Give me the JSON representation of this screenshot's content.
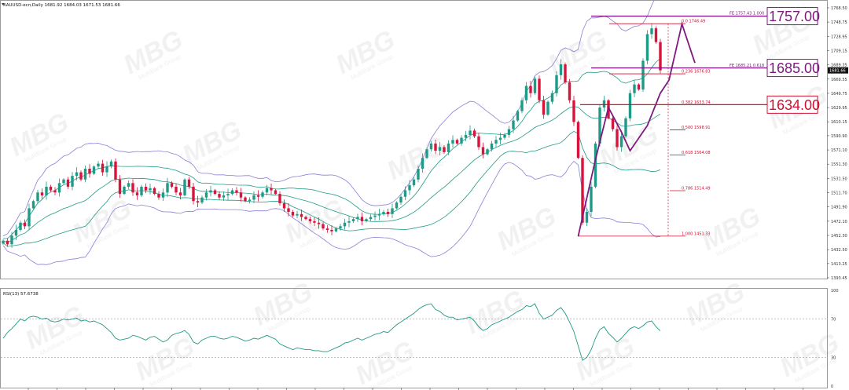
{
  "chart": {
    "symbol_line": "XAUUSD-ecn,Daily  1681.92 1684.03 1671.53 1681.66",
    "current_price_label": "1681.66",
    "watermark": {
      "text": "MBG",
      "subtext": "MultiBank Group"
    },
    "colors": {
      "bull": "#1f9a86",
      "bear": "#d6143c",
      "bb_outer": "#8a7fd6",
      "bb_inner": "#1f9a86",
      "fib": "#d01030",
      "fe": "#8b1a8b",
      "rsi": "#1f9a86",
      "impulse": "#7d1a7d"
    }
  },
  "chart_data": [
    {
      "type": "candlestick",
      "title": "",
      "ylim": [
        1393.45,
        1768.5
      ],
      "y_ticks": [
        "1768.50",
        "1748.75",
        "1728.95",
        "1709.15",
        "1689.35",
        "1669.55",
        "1649.75",
        "1629.95",
        "1610.15",
        "1590.90",
        "1571.10",
        "1551.30",
        "1531.50",
        "1511.70",
        "1491.90",
        "1472.10",
        "1452.30",
        "1432.50",
        "1413.25",
        "1393.45"
      ],
      "fibonacci": {
        "levels": [
          {
            "ratio": "0.0",
            "price": "1746.49",
            "text": "0.0  1746.49"
          },
          {
            "ratio": "0.236",
            "price": "1676.83",
            "text": "0.236  1676.83"
          },
          {
            "ratio": "0.382",
            "price": "1633.74",
            "text": "0.382  1633.74"
          },
          {
            "ratio": "0.500",
            "price": "1598.91",
            "text": "0.500  1598.91"
          },
          {
            "ratio": "0.618",
            "price": "1564.08",
            "text": "0.618  1564.08"
          },
          {
            "ratio": "0.786",
            "price": "1514.49",
            "text": "0.786  1514.49"
          },
          {
            "ratio": "1.000",
            "price": "1451.33",
            "text": "1.000  1451.33"
          }
        ]
      },
      "fib_expansion": [
        {
          "text": "FE 1757.43  1.000",
          "price": 1757.43
        },
        {
          "text": "FE 1685.21  0.618",
          "price": 1685.21
        }
      ],
      "key_levels": [
        {
          "label": "1757.00",
          "price": 1757.0,
          "color": "#7d1a7d"
        },
        {
          "label": "1685.00",
          "price": 1685.0,
          "color": "#7d1a7d"
        },
        {
          "label": "1634.00",
          "price": 1634.0,
          "color": "#d01030"
        }
      ],
      "impulse_path": [
        [
          133,
          1451
        ],
        [
          137,
          1558
        ],
        [
          140,
          1630
        ],
        [
          143,
          1596
        ],
        [
          145,
          1570
        ],
        [
          149,
          1605
        ],
        [
          152,
          1650
        ],
        [
          154,
          1668
        ],
        [
          157,
          1746
        ],
        [
          160,
          1692
        ]
      ],
      "closes": [
        1445,
        1440,
        1452,
        1460,
        1470,
        1465,
        1490,
        1500,
        1512,
        1508,
        1520,
        1515,
        1512,
        1525,
        1530,
        1520,
        1535,
        1540,
        1530,
        1545,
        1538,
        1548,
        1552,
        1540,
        1548,
        1555,
        1530,
        1510,
        1520,
        1525,
        1512,
        1508,
        1520,
        1515,
        1518,
        1510,
        1505,
        1512,
        1525,
        1520,
        1512,
        1508,
        1530,
        1520,
        1500,
        1498,
        1505,
        1512,
        1515,
        1510,
        1505,
        1508,
        1510,
        1515,
        1512,
        1505,
        1500,
        1502,
        1508,
        1506,
        1512,
        1518,
        1515,
        1510,
        1497,
        1490,
        1485,
        1480,
        1482,
        1478,
        1475,
        1472,
        1470,
        1468,
        1462,
        1460,
        1458,
        1462,
        1465,
        1470,
        1472,
        1475,
        1478,
        1472,
        1475,
        1478,
        1480,
        1482,
        1485,
        1482,
        1490,
        1498,
        1506,
        1515,
        1522,
        1530,
        1545,
        1560,
        1572,
        1580,
        1570,
        1575,
        1568,
        1580,
        1585,
        1580,
        1588,
        1592,
        1598,
        1590,
        1575,
        1565,
        1572,
        1580,
        1585,
        1588,
        1592,
        1600,
        1612,
        1625,
        1640,
        1660,
        1650,
        1670,
        1640,
        1620,
        1638,
        1650,
        1675,
        1690,
        1665,
        1640,
        1610,
        1560,
        1470,
        1485,
        1520,
        1580,
        1630,
        1640,
        1615,
        1600,
        1575,
        1590,
        1615,
        1650,
        1662,
        1655,
        1695,
        1732,
        1740,
        1721,
        1681.66
      ],
      "rsi": {
        "label": "RSI(13) 57.6738",
        "ylim": [
          0,
          100
        ],
        "levels": [
          70,
          30
        ],
        "tick_labels": [
          "100",
          "70",
          "30",
          "0"
        ],
        "values": [
          50,
          56,
          60,
          65,
          70,
          68,
          72,
          73,
          72,
          70,
          71,
          68,
          67,
          68,
          70,
          69,
          70,
          71,
          68,
          69,
          67,
          68,
          66,
          64,
          60,
          56,
          50,
          48,
          49,
          50,
          53,
          52,
          50,
          48,
          51,
          52,
          49,
          46,
          48,
          53,
          55,
          56,
          58,
          54,
          46,
          44,
          48,
          50,
          52,
          52,
          50,
          49,
          50,
          52,
          51,
          49,
          47,
          48,
          50,
          49,
          51,
          53,
          51,
          49,
          44,
          42,
          40,
          38,
          40,
          39,
          38,
          38,
          37,
          37,
          36,
          36,
          38,
          40,
          42,
          45,
          46,
          48,
          50,
          48,
          50,
          52,
          54,
          55,
          57,
          56,
          60,
          64,
          67,
          70,
          73,
          76,
          80,
          83,
          85,
          86,
          80,
          78,
          74,
          72,
          72,
          69,
          70,
          71,
          72,
          68,
          62,
          58,
          60,
          64,
          66,
          68,
          70,
          72,
          75,
          78,
          80,
          84,
          83,
          86,
          76,
          70,
          72,
          74,
          79,
          82,
          76,
          67,
          57,
          42,
          27,
          30,
          38,
          50,
          59,
          62,
          55,
          51,
          46,
          50,
          55,
          60,
          62,
          60,
          63,
          67,
          68,
          62,
          57.67
        ]
      }
    }
  ]
}
